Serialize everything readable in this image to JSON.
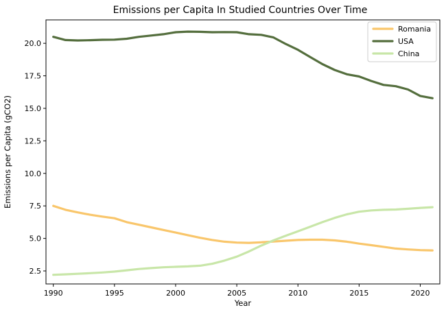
{
  "chart_data": {
    "type": "line",
    "title": "Emissions per Capita In Studied Countries Over Time",
    "xlabel": "Year",
    "ylabel": "Emissions per Capita (gCO2)",
    "xlim": [
      1989.4,
      2021.6
    ],
    "ylim": [
      1.5,
      21.8
    ],
    "xticks": [
      1990,
      1995,
      2000,
      2005,
      2010,
      2015,
      2020
    ],
    "yticks": [
      2.5,
      5.0,
      7.5,
      10.0,
      12.5,
      15.0,
      17.5,
      20.0
    ],
    "grid": false,
    "legend": "top-right",
    "x": [
      1990,
      1991,
      1992,
      1993,
      1994,
      1995,
      1996,
      1997,
      1998,
      1999,
      2000,
      2001,
      2002,
      2003,
      2004,
      2005,
      2006,
      2007,
      2008,
      2009,
      2010,
      2011,
      2012,
      2013,
      2014,
      2015,
      2016,
      2017,
      2018,
      2019,
      2020,
      2021
    ],
    "series": [
      {
        "name": "Romania",
        "color": "#F9C66B",
        "values": [
          7.5,
          7.2,
          7.0,
          6.82,
          6.68,
          6.55,
          6.25,
          6.05,
          5.85,
          5.65,
          5.45,
          5.25,
          5.05,
          4.88,
          4.75,
          4.68,
          4.66,
          4.7,
          4.76,
          4.82,
          4.88,
          4.9,
          4.9,
          4.85,
          4.75,
          4.6,
          4.48,
          4.35,
          4.22,
          4.15,
          4.1,
          4.08
        ]
      },
      {
        "name": "USA",
        "color": "#546E3D",
        "values": [
          20.5,
          20.25,
          20.22,
          20.24,
          20.27,
          20.28,
          20.35,
          20.5,
          20.6,
          20.7,
          20.85,
          20.9,
          20.88,
          20.85,
          20.86,
          20.85,
          20.7,
          20.65,
          20.45,
          19.95,
          19.5,
          18.95,
          18.4,
          17.95,
          17.62,
          17.45,
          17.1,
          16.8,
          16.7,
          16.45,
          15.95,
          15.78
        ]
      },
      {
        "name": "China",
        "color": "#C8E6A8",
        "values": [
          2.2,
          2.24,
          2.28,
          2.33,
          2.38,
          2.45,
          2.55,
          2.65,
          2.72,
          2.78,
          2.82,
          2.85,
          2.9,
          3.05,
          3.3,
          3.6,
          4.0,
          4.45,
          4.85,
          5.2,
          5.55,
          5.9,
          6.25,
          6.58,
          6.85,
          7.05,
          7.15,
          7.2,
          7.22,
          7.28,
          7.35,
          7.4
        ]
      }
    ]
  }
}
